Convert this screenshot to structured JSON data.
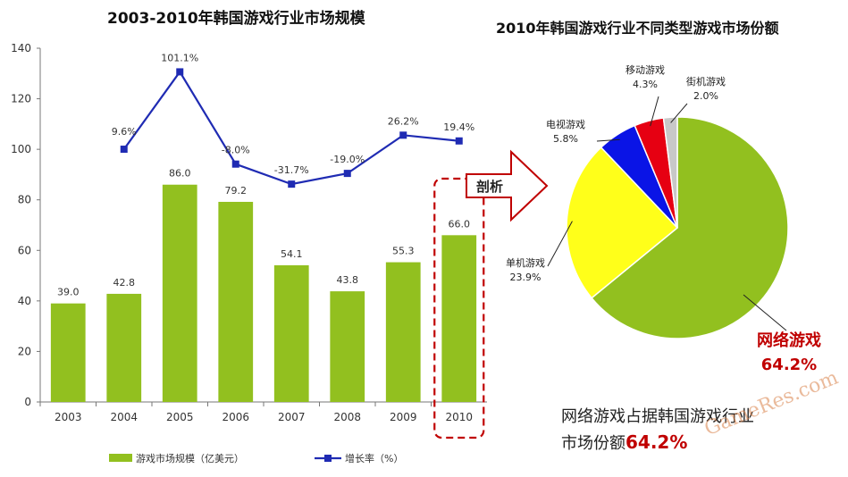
{
  "chart_data": [
    {
      "type": "bar",
      "title": "2003-2010年韩国游戏行业市场规模",
      "categories": [
        "2003",
        "2004",
        "2005",
        "2006",
        "2007",
        "2008",
        "2009",
        "2010"
      ],
      "series": [
        {
          "name": "游戏市场规模（亿美元）",
          "values": [
            39.0,
            42.8,
            86.0,
            79.2,
            54.1,
            43.8,
            55.3,
            66.0
          ],
          "labels": [
            "39.0",
            "42.8",
            "86.0",
            "79.2",
            "54.1",
            "43.8",
            "55.3",
            "66.0"
          ],
          "color": "#92c01f"
        },
        {
          "name": "增长率（%）",
          "type": "line",
          "values": [
            null,
            9.6,
            101.1,
            -8.0,
            -31.7,
            -19.0,
            26.2,
            19.4
          ],
          "labels": [
            "",
            "9.6%",
            "101.1%",
            "-8.0%",
            "-31.7%",
            "-19.0%",
            "26.2%",
            "19.4%"
          ],
          "color": "#1f2bb3"
        }
      ],
      "yticks": [
        "0",
        "20",
        "40",
        "60",
        "80",
        "100",
        "120",
        "140"
      ],
      "ylim": [
        0,
        140
      ],
      "highlight_category": "2010"
    },
    {
      "type": "pie",
      "title": "2010年韩国游戏行业不同类型游戏市场份额",
      "slices": [
        {
          "name": "网络游戏",
          "value": 64.2,
          "label": "64.2%",
          "color": "#92c01f"
        },
        {
          "name": "单机游戏",
          "value": 23.9,
          "label": "23.9%",
          "color": "#ffff1a"
        },
        {
          "name": "电视游戏",
          "value": 5.8,
          "label": "5.8%",
          "color": "#0a14e6"
        },
        {
          "name": "移动游戏",
          "value": 4.3,
          "label": "4.3%",
          "color": "#e60012"
        },
        {
          "name": "街机游戏",
          "value": 2.0,
          "label": "2.0%",
          "color": "#c8c8c8"
        }
      ]
    }
  ],
  "annotations": {
    "arrow_text": "剖析",
    "conclusion_line1": "网络游戏占据韩国游戏行业",
    "conclusion_line2": "市场份额",
    "conclusion_pct": "64.2%",
    "net_name": "网络游戏",
    "net_pct": "64.2%",
    "watermark": "GameRes.com"
  }
}
